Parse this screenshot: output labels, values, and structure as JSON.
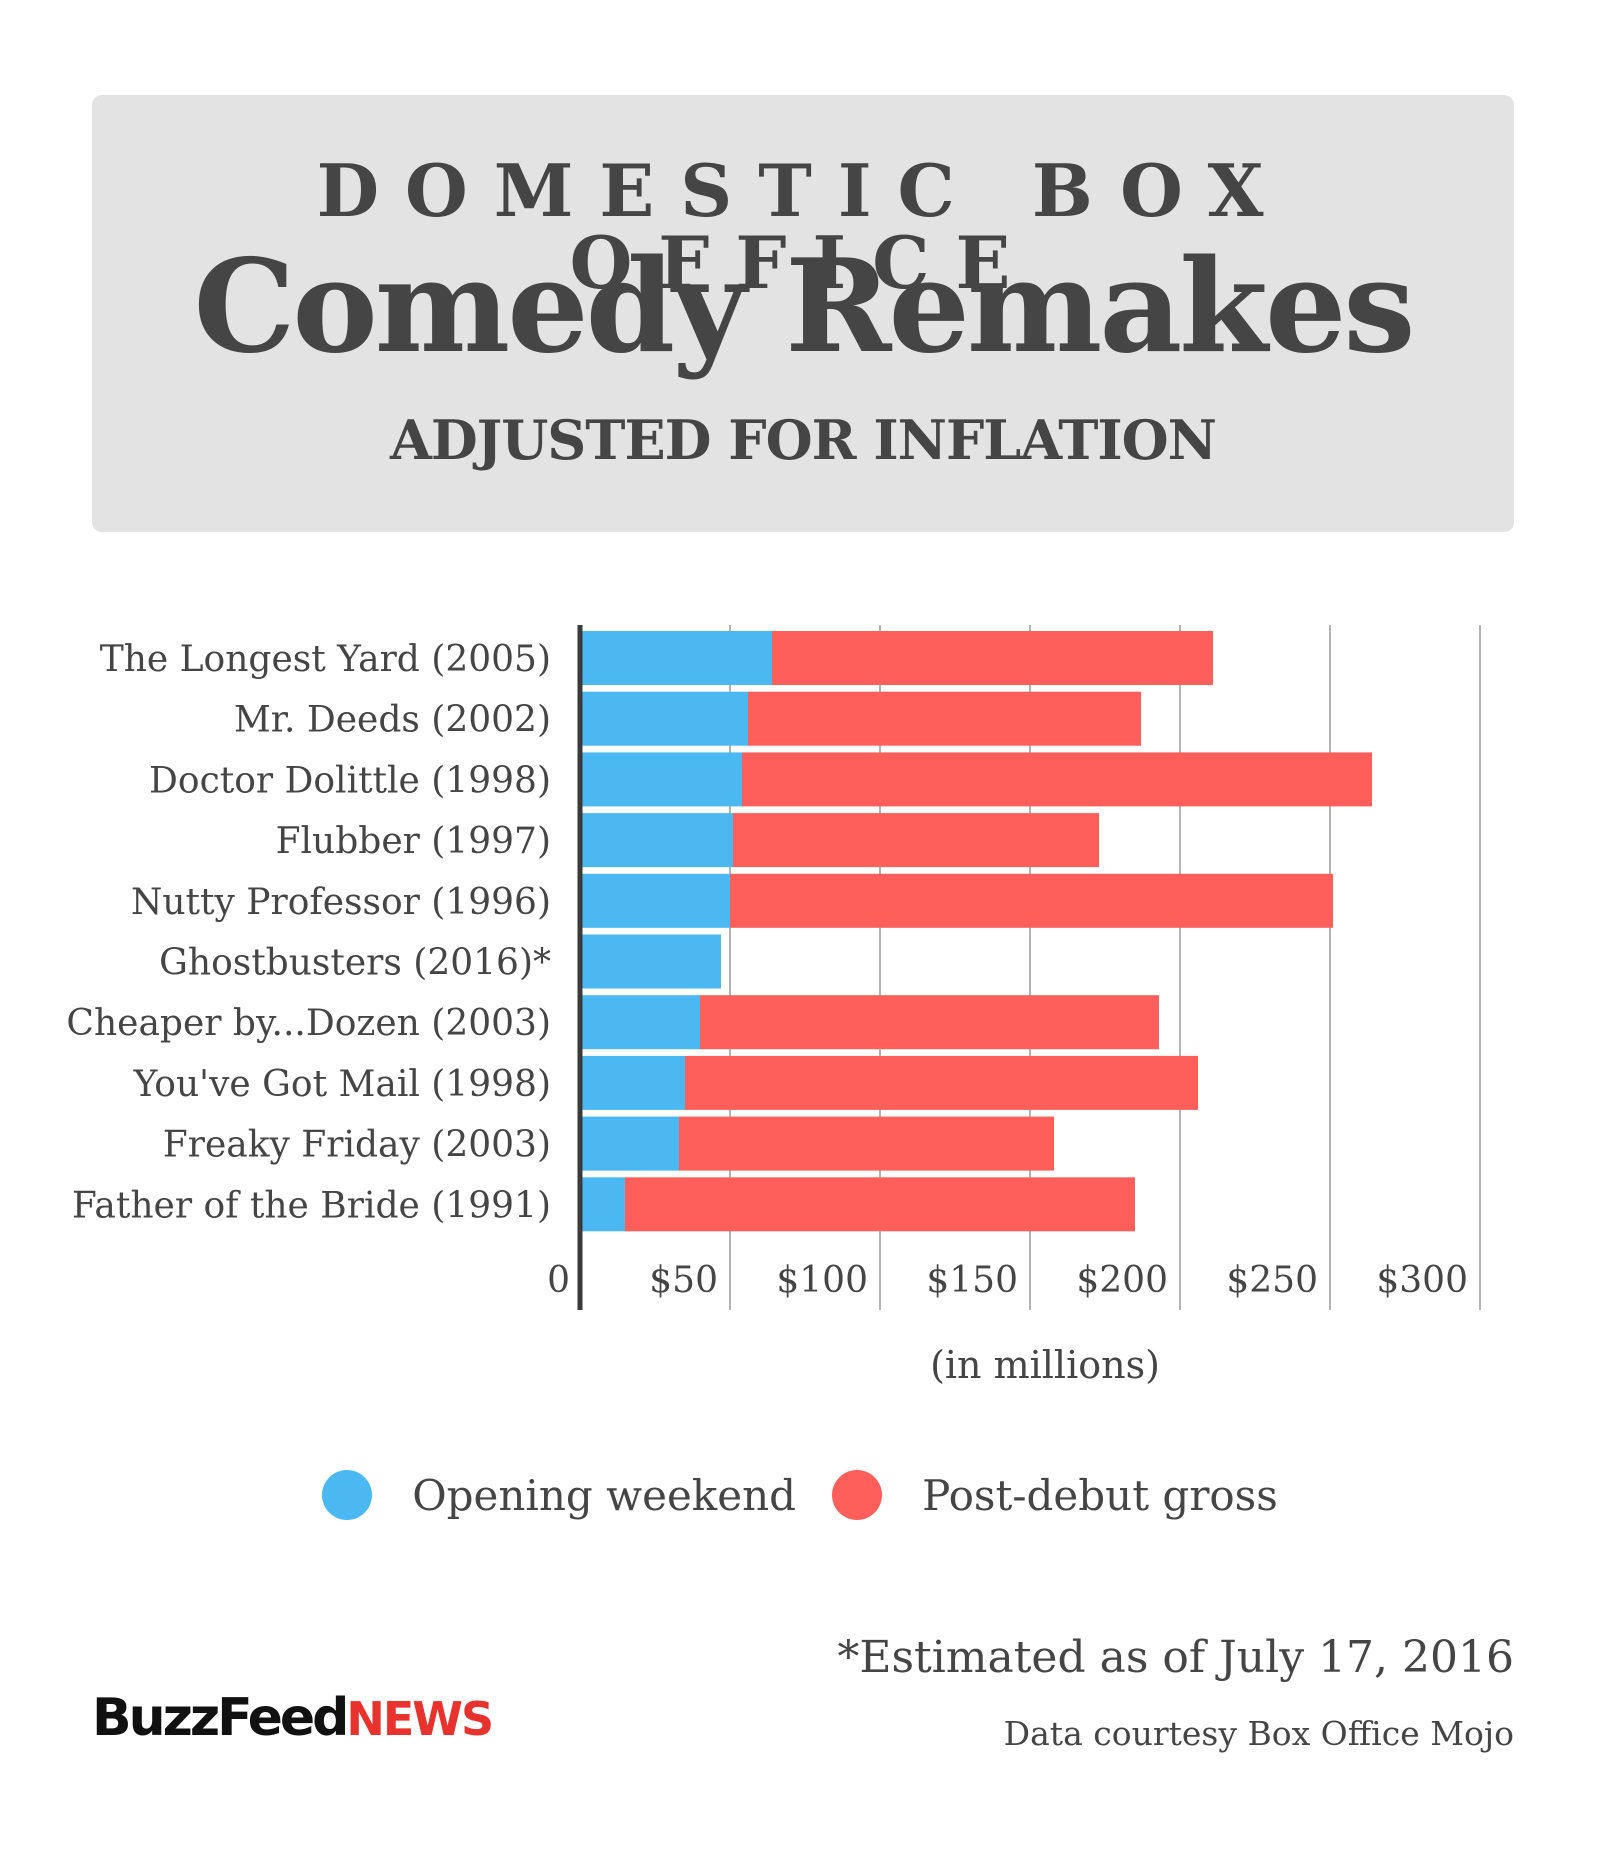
{
  "header": {
    "supertitle": "DOMESTIC BOX OFFICE",
    "title": "Comedy Remakes",
    "subtitle": "ADJUSTED FOR INFLATION"
  },
  "colors": {
    "opening": "#4bb8f2",
    "post_debut": "#ff5f5a",
    "grid": "#b4b4b4",
    "axis": "#3a3a3a",
    "text": "#454545"
  },
  "chart_data": {
    "type": "bar",
    "orientation": "horizontal",
    "stacked": true,
    "categories": [
      "The Longest Yard (2005)",
      "Mr. Deeds (2002)",
      "Doctor Dolittle (1998)",
      "Flubber (1997)",
      "Nutty Professor (1996)",
      "Ghostbusters (2016)*",
      "Cheaper by...Dozen (2003)",
      "You've Got Mail (1998)",
      "Freaky Friday (2003)",
      "Father of the Bride (1991)"
    ],
    "series": [
      {
        "name": "Opening weekend",
        "values": [
          64,
          56,
          54,
          51,
          50,
          47,
          40,
          35,
          33,
          15
        ]
      },
      {
        "name": "Post-debut gross",
        "values": [
          147,
          131,
          210,
          122,
          201,
          0,
          153,
          171,
          125,
          170
        ]
      }
    ],
    "xlim": [
      0,
      300
    ],
    "xticks": [
      0,
      50,
      100,
      150,
      200,
      250,
      300
    ],
    "xtick_labels": [
      "0",
      "$50",
      "$100",
      "$150",
      "$200",
      "$250",
      "$300"
    ],
    "xlabel": "(in millions)",
    "ylabel": "",
    "grid": true,
    "legend_position": "bottom"
  },
  "legend": [
    {
      "label": "Opening weekend",
      "color_key": "opening"
    },
    {
      "label": "Post-debut gross",
      "color_key": "post_debut"
    }
  ],
  "footnote": "*Estimated as of July 17, 2016",
  "source": "Data courtesy Box Office Mojo",
  "logo": {
    "part1": "BuzzFeed",
    "part2": "NEWS"
  }
}
